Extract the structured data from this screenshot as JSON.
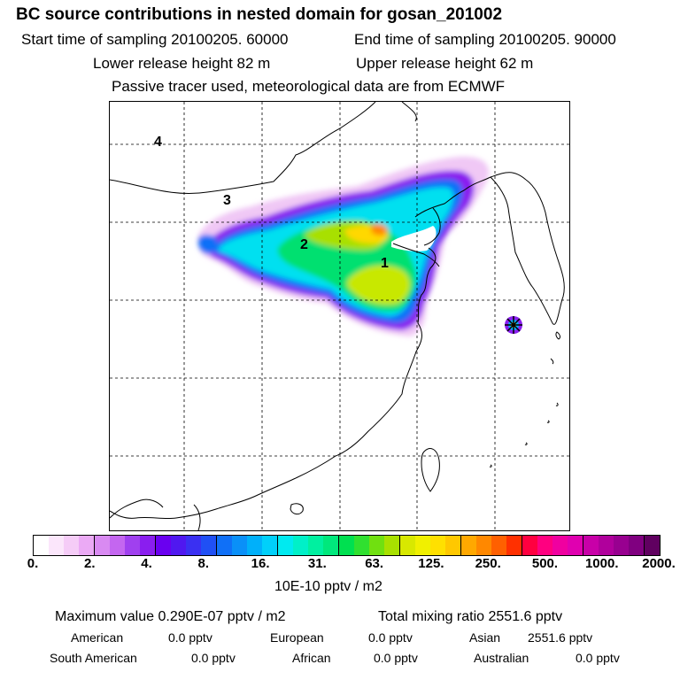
{
  "header": {
    "title": "BC  source contributions in nested domain for gosan_201002",
    "start_time": "Start time of sampling 20100205. 60000",
    "end_time": "End time of sampling 20100205. 90000",
    "lower_release": "Lower release height   82 m",
    "upper_release": "Upper release height   62 m",
    "tracer_note": "Passive tracer used, meteorological data are from ECMWF"
  },
  "map": {
    "region_labels": [
      "4",
      "3",
      "2",
      "1"
    ],
    "receptor": "gosan"
  },
  "colorbar": {
    "tick_labels": [
      "0.",
      "2.",
      "4.",
      "8.",
      "16.",
      "31.",
      "63.",
      "125.",
      "250.",
      "500.",
      "1000.",
      "2000."
    ],
    "colors": [
      "#ffffff",
      "#fbe6fb",
      "#f5ccf7",
      "#ebaaf5",
      "#d98af2",
      "#c466f0",
      "#a040ef",
      "#8a1eef",
      "#6a00f0",
      "#5018f0",
      "#3a30f2",
      "#2050f5",
      "#1070f7",
      "#0a90f8",
      "#00b0fa",
      "#00d0fa",
      "#00eaf0",
      "#00f0c8",
      "#00f0a0",
      "#00e87c",
      "#00e050",
      "#30e030",
      "#70e010",
      "#a8e000",
      "#d8e800",
      "#f0f000",
      "#ffe000",
      "#ffc800",
      "#ffa800",
      "#ff8800",
      "#ff6000",
      "#ff3000",
      "#ff0040",
      "#ff0080",
      "#f000a0",
      "#e000b0",
      "#c800a8",
      "#b0009c",
      "#980090",
      "#800080",
      "#600060"
    ],
    "units": "10E-10 pptv / m2"
  },
  "summary": {
    "max_value": "Maximum value  0.290E-07 pptv / m2",
    "total_mixing": "Total mixing ratio     2551.6 pptv",
    "american_label": "American",
    "american_value": "0.0 pptv",
    "european_label": "European",
    "european_value": "0.0 pptv",
    "asian_label": "Asian",
    "asian_value": "2551.6 pptv",
    "south_american_label": "South American",
    "south_american_value": "0.0 pptv",
    "african_label": "African",
    "african_value": "0.0 pptv",
    "australian_label": "Australian",
    "australian_value": "0.0 pptv"
  }
}
